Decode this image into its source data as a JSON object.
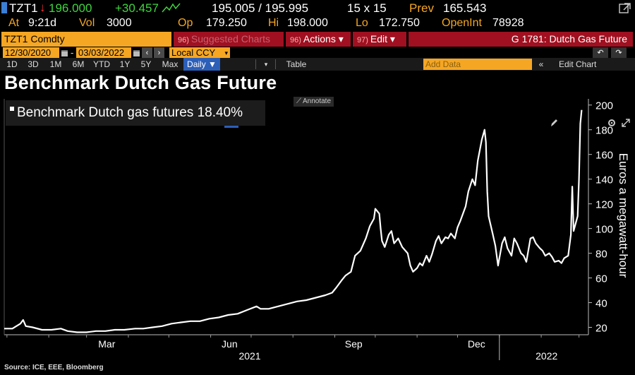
{
  "quote": {
    "ticker": "TZT1",
    "last_arrow": "↓",
    "last": "196.000",
    "change": "+30.457",
    "bid_ask": "195.005 / 195.995",
    "size": "15 x 15",
    "prev_label": "Prev",
    "prev": "165.543",
    "at_label": "At",
    "time": "9:21d",
    "vol_label": "Vol",
    "vol": "3000",
    "op_label": "Op",
    "op": "179.250",
    "hi_label": "Hi",
    "hi": "198.000",
    "lo_label": "Lo",
    "lo": "172.750",
    "oi_label": "OpenInt",
    "oi": "78928"
  },
  "menu": {
    "security": "TZT1 Comdty",
    "suggested_num": "96)",
    "suggested": "Suggested Charts",
    "actions_num": "96)",
    "actions": "Actions ▾",
    "edit_num": "97)",
    "edit": "Edit ▾",
    "graph_title": "G 1781: Dutch Gas Future"
  },
  "dates": {
    "start": "12/30/2020",
    "end": "03/03/2022",
    "currency": "Local CCY",
    "sep": "-"
  },
  "toolbar": {
    "periods": [
      "1D",
      "3D",
      "1M",
      "6M",
      "YTD",
      "1Y",
      "5Y",
      "Max"
    ],
    "frequency": "Daily ▼",
    "table": "Table",
    "add_data_placeholder": "Add Data",
    "edit_chart": "Edit Chart"
  },
  "title": "Benchmark Dutch Gas Future",
  "annotate": "Annotate",
  "source": "Source: ICE, EEE, Bloomberg",
  "chart_data": {
    "type": "line",
    "title": "Benchmark Dutch Gas Future",
    "ylabel": "Euros a megawatt-hour",
    "ylim": [
      14,
      205
    ],
    "yticks": [
      "20",
      "40",
      "60",
      "80",
      "100",
      "120",
      "140",
      "160",
      "180",
      "200"
    ],
    "xlabels": [
      "Mar",
      "Jun",
      "Sep",
      "Dec"
    ],
    "years": [
      "2021",
      "2022"
    ],
    "grid": false,
    "legend_position": "top-left",
    "series": [
      {
        "name": "Benchmark Dutch gas futures 18.40%",
        "color": "#ffffff",
        "points": [
          [
            "2020-12-30",
            19
          ],
          [
            "2021-01-05",
            19
          ],
          [
            "2021-01-11",
            23
          ],
          [
            "2021-01-13",
            26
          ],
          [
            "2021-01-15",
            21
          ],
          [
            "2021-01-20",
            20
          ],
          [
            "2021-01-27",
            18
          ],
          [
            "2021-02-03",
            18
          ],
          [
            "2021-02-10",
            19
          ],
          [
            "2021-02-15",
            17
          ],
          [
            "2021-02-22",
            16
          ],
          [
            "2021-03-01",
            16
          ],
          [
            "2021-03-08",
            17
          ],
          [
            "2021-03-15",
            17
          ],
          [
            "2021-03-22",
            18
          ],
          [
            "2021-03-29",
            18
          ],
          [
            "2021-04-06",
            19
          ],
          [
            "2021-04-12",
            19
          ],
          [
            "2021-04-19",
            20
          ],
          [
            "2021-04-26",
            21
          ],
          [
            "2021-05-03",
            23
          ],
          [
            "2021-05-10",
            24
          ],
          [
            "2021-05-17",
            25
          ],
          [
            "2021-05-24",
            25
          ],
          [
            "2021-05-31",
            27
          ],
          [
            "2021-06-07",
            28
          ],
          [
            "2021-06-14",
            30
          ],
          [
            "2021-06-21",
            31
          ],
          [
            "2021-06-28",
            34
          ],
          [
            "2021-07-05",
            37
          ],
          [
            "2021-07-08",
            35
          ],
          [
            "2021-07-14",
            35
          ],
          [
            "2021-07-21",
            37
          ],
          [
            "2021-07-28",
            39
          ],
          [
            "2021-08-04",
            41
          ],
          [
            "2021-08-11",
            42
          ],
          [
            "2021-08-18",
            44
          ],
          [
            "2021-08-25",
            46
          ],
          [
            "2021-08-30",
            48
          ],
          [
            "2021-09-02",
            52
          ],
          [
            "2021-09-06",
            58
          ],
          [
            "2021-09-09",
            62
          ],
          [
            "2021-09-13",
            65
          ],
          [
            "2021-09-16",
            78
          ],
          [
            "2021-09-20",
            82
          ],
          [
            "2021-09-24",
            92
          ],
          [
            "2021-09-27",
            102
          ],
          [
            "2021-09-30",
            108
          ],
          [
            "2021-10-01",
            116
          ],
          [
            "2021-10-04",
            112
          ],
          [
            "2021-10-05",
            100
          ],
          [
            "2021-10-06",
            90
          ],
          [
            "2021-10-08",
            85
          ],
          [
            "2021-10-11",
            95
          ],
          [
            "2021-10-13",
            98
          ],
          [
            "2021-10-15",
            88
          ],
          [
            "2021-10-18",
            92
          ],
          [
            "2021-10-21",
            85
          ],
          [
            "2021-10-25",
            80
          ],
          [
            "2021-10-27",
            70
          ],
          [
            "2021-10-29",
            65
          ],
          [
            "2021-11-01",
            68
          ],
          [
            "2021-11-03",
            72
          ],
          [
            "2021-11-05",
            70
          ],
          [
            "2021-11-08",
            78
          ],
          [
            "2021-11-10",
            73
          ],
          [
            "2021-11-12",
            79
          ],
          [
            "2021-11-15",
            90
          ],
          [
            "2021-11-17",
            94
          ],
          [
            "2021-11-19",
            88
          ],
          [
            "2021-11-22",
            93
          ],
          [
            "2021-11-24",
            92
          ],
          [
            "2021-11-26",
            96
          ],
          [
            "2021-11-29",
            92
          ],
          [
            "2021-12-01",
            101
          ],
          [
            "2021-12-03",
            106
          ],
          [
            "2021-12-07",
            118
          ],
          [
            "2021-12-09",
            130
          ],
          [
            "2021-12-12",
            140
          ],
          [
            "2021-12-14",
            135
          ],
          [
            "2021-12-16",
            155
          ],
          [
            "2021-12-19",
            172
          ],
          [
            "2021-12-21",
            180
          ],
          [
            "2021-12-22",
            170
          ],
          [
            "2021-12-23",
            130
          ],
          [
            "2021-12-24",
            110
          ],
          [
            "2021-12-27",
            96
          ],
          [
            "2021-12-29",
            86
          ],
          [
            "2021-12-31",
            70
          ],
          [
            "2022-01-03",
            88
          ],
          [
            "2022-01-05",
            93
          ],
          [
            "2022-01-07",
            84
          ],
          [
            "2022-01-10",
            78
          ],
          [
            "2022-01-12",
            92
          ],
          [
            "2022-01-14",
            88
          ],
          [
            "2022-01-17",
            80
          ],
          [
            "2022-01-19",
            78
          ],
          [
            "2022-01-21",
            73
          ],
          [
            "2022-01-24",
            92
          ],
          [
            "2022-01-26",
            93
          ],
          [
            "2022-01-28",
            88
          ],
          [
            "2022-01-31",
            84
          ],
          [
            "2022-02-02",
            82
          ],
          [
            "2022-02-04",
            78
          ],
          [
            "2022-02-07",
            80
          ],
          [
            "2022-02-09",
            77
          ],
          [
            "2022-02-11",
            73
          ],
          [
            "2022-02-14",
            74
          ],
          [
            "2022-02-16",
            72
          ],
          [
            "2022-02-18",
            76
          ],
          [
            "2022-02-21",
            78
          ],
          [
            "2022-02-23",
            95
          ],
          [
            "2022-02-24",
            134
          ],
          [
            "2022-02-25",
            98
          ],
          [
            "2022-02-28",
            110
          ],
          [
            "2022-03-01",
            140
          ],
          [
            "2022-03-02",
            185
          ],
          [
            "2022-03-03",
            196
          ]
        ]
      }
    ]
  }
}
